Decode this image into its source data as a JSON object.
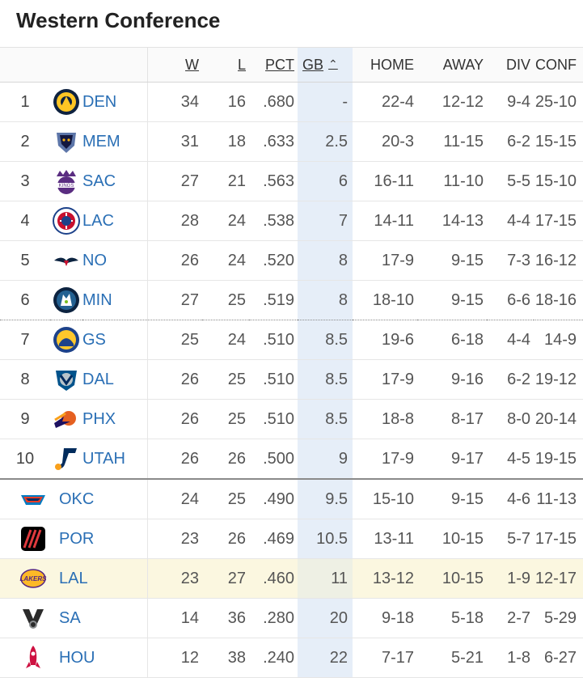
{
  "title": "Western Conference",
  "headers": {
    "w": "W",
    "l": "L",
    "pct": "PCT",
    "gb": "GB",
    "home": "HOME",
    "away": "AWAY",
    "div": "DIV",
    "conf": "CONF"
  },
  "colors": {
    "link": "#2a6fb5",
    "gb_column": "#e6eef8",
    "highlight_row": "#fbf7e0"
  },
  "rows": [
    {
      "rank": "1",
      "logo": "nuggets-logo",
      "team": "DEN",
      "w": "34",
      "l": "16",
      "pct": ".680",
      "gb": "-",
      "home": "22-4",
      "away": "12-12",
      "div": "9-4",
      "conf": "25-10"
    },
    {
      "rank": "2",
      "logo": "grizzlies-logo",
      "team": "MEM",
      "w": "31",
      "l": "18",
      "pct": ".633",
      "gb": "2.5",
      "home": "20-3",
      "away": "11-15",
      "div": "6-2",
      "conf": "15-15"
    },
    {
      "rank": "3",
      "logo": "kings-logo",
      "team": "SAC",
      "w": "27",
      "l": "21",
      "pct": ".563",
      "gb": "6",
      "home": "16-11",
      "away": "11-10",
      "div": "5-5",
      "conf": "15-10"
    },
    {
      "rank": "4",
      "logo": "clippers-logo",
      "team": "LAC",
      "w": "28",
      "l": "24",
      "pct": ".538",
      "gb": "7",
      "home": "14-11",
      "away": "14-13",
      "div": "4-4",
      "conf": "17-15"
    },
    {
      "rank": "5",
      "logo": "pelicans-logo",
      "team": "NO",
      "w": "26",
      "l": "24",
      "pct": ".520",
      "gb": "8",
      "home": "17-9",
      "away": "9-15",
      "div": "7-3",
      "conf": "16-12"
    },
    {
      "rank": "6",
      "logo": "timberwolves-logo",
      "team": "MIN",
      "w": "27",
      "l": "25",
      "pct": ".519",
      "gb": "8",
      "home": "18-10",
      "away": "9-15",
      "div": "6-6",
      "conf": "18-16"
    },
    {
      "rank": "7",
      "logo": "warriors-logo",
      "team": "GS",
      "w": "25",
      "l": "24",
      "pct": ".510",
      "gb": "8.5",
      "home": "19-6",
      "away": "6-18",
      "div": "4-4",
      "conf": "14-9"
    },
    {
      "rank": "8",
      "logo": "mavericks-logo",
      "team": "DAL",
      "w": "26",
      "l": "25",
      "pct": ".510",
      "gb": "8.5",
      "home": "17-9",
      "away": "9-16",
      "div": "6-2",
      "conf": "19-12"
    },
    {
      "rank": "9",
      "logo": "suns-logo",
      "team": "PHX",
      "w": "26",
      "l": "25",
      "pct": ".510",
      "gb": "8.5",
      "home": "18-8",
      "away": "8-17",
      "div": "8-0",
      "conf": "20-14"
    },
    {
      "rank": "10",
      "logo": "jazz-logo",
      "team": "UTAH",
      "w": "26",
      "l": "26",
      "pct": ".500",
      "gb": "9",
      "home": "17-9",
      "away": "9-17",
      "div": "4-5",
      "conf": "19-15"
    },
    {
      "rank": "",
      "logo": "thunder-logo",
      "team": "OKC",
      "w": "24",
      "l": "25",
      "pct": ".490",
      "gb": "9.5",
      "home": "15-10",
      "away": "9-15",
      "div": "4-6",
      "conf": "11-13"
    },
    {
      "rank": "",
      "logo": "blazers-logo",
      "team": "POR",
      "w": "23",
      "l": "26",
      "pct": ".469",
      "gb": "10.5",
      "home": "13-11",
      "away": "10-15",
      "div": "5-7",
      "conf": "17-15"
    },
    {
      "rank": "",
      "logo": "lakers-logo",
      "team": "LAL",
      "w": "23",
      "l": "27",
      "pct": ".460",
      "gb": "11",
      "home": "13-12",
      "away": "10-15",
      "div": "1-9",
      "conf": "12-17"
    },
    {
      "rank": "",
      "logo": "spurs-logo",
      "team": "SA",
      "w": "14",
      "l": "36",
      "pct": ".280",
      "gb": "20",
      "home": "9-18",
      "away": "5-18",
      "div": "2-7",
      "conf": "5-29"
    },
    {
      "rank": "",
      "logo": "rockets-logo",
      "team": "HOU",
      "w": "12",
      "l": "38",
      "pct": ".240",
      "gb": "22",
      "home": "7-17",
      "away": "5-21",
      "div": "1-8",
      "conf": "6-27"
    }
  ]
}
